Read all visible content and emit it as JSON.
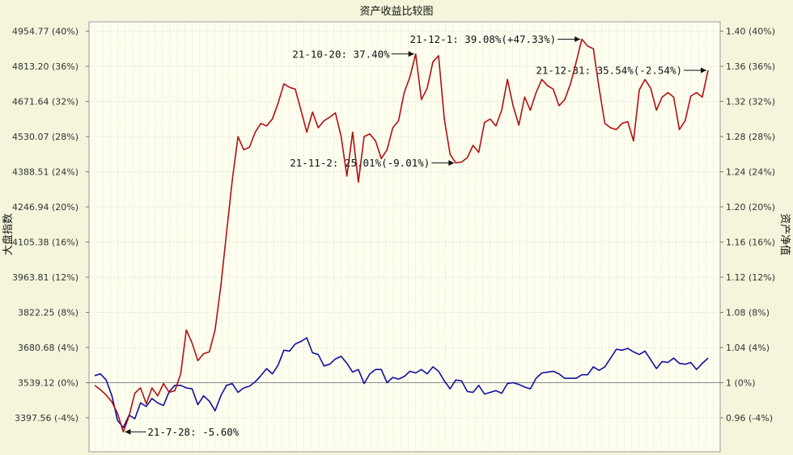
{
  "chart_data": {
    "type": "line",
    "title": "资产收益比较图",
    "ylabel_left": "大盘指数",
    "ylabel_right": "资产净值",
    "left_ticks": [
      "4954.77 (40%)",
      "4813.20 (36%)",
      "4671.64 (32%)",
      "4530.07 (28%)",
      "4388.51 (24%)",
      "4246.94 (20%)",
      "4105.38 (16%)",
      "3963.81 (12%)",
      "3822.25 (8%)",
      "3680.68 (4%)",
      "3539.12 (0%)",
      "3397.56 (-4%)"
    ],
    "right_ticks": [
      "1.40 (40%)",
      "1.36 (36%)",
      "1.32 (32%)",
      "1.28 (28%)",
      "1.24 (24%)",
      "1.20 (20%)",
      "1.16 (16%)",
      "1.12 (12%)",
      "1.08 (8%)",
      "1.04 (4%)",
      "1 (0%)",
      "0.96 (-4%)"
    ],
    "ylim_percent": [
      -4,
      40
    ],
    "grid": true,
    "colors": {
      "background": "#f5f5dc",
      "plot_background": "#fffff0",
      "fund": "#b01010",
      "index": "#1010a0",
      "grid": "#c8c8c8"
    },
    "series": [
      {
        "name": "资产净值",
        "color": "#b01010",
        "values": [
          -0.3,
          -0.8,
          -1.4,
          -2.2,
          -3.5,
          -5.6,
          -3.8,
          -1.2,
          -0.6,
          -2.4,
          -0.6,
          -1.5,
          -0.1,
          -1.1,
          -0.9,
          1.0,
          6.0,
          4.5,
          2.5,
          3.3,
          3.5,
          6.0,
          11.0,
          17.0,
          23.0,
          28.0,
          26.5,
          26.8,
          28.5,
          29.5,
          29.2,
          30.0,
          31.8,
          34.0,
          33.6,
          33.4,
          31.0,
          28.5,
          30.8,
          29.0,
          29.8,
          30.2,
          30.7,
          28.0,
          23.5,
          28.5,
          22.8,
          28.0,
          28.3,
          27.5,
          25.5,
          26.5,
          29.0,
          29.8,
          33.0,
          34.8,
          37.4,
          32.2,
          33.5,
          36.5,
          37.2,
          30.0,
          26.0,
          25.0,
          25.1,
          25.6,
          27.0,
          26.2,
          29.6,
          30.0,
          29.2,
          31.0,
          34.5,
          31.5,
          29.3,
          32.5,
          31.0,
          33.0,
          34.5,
          33.8,
          33.4,
          31.5,
          32.2,
          34.0,
          36.5,
          39.08,
          38.3,
          38.0,
          33.5,
          29.5,
          29.0,
          28.8,
          29.5,
          29.7,
          27.5,
          33.3,
          34.5,
          33.5,
          31.0,
          32.5,
          33.0,
          32.5,
          28.8,
          29.8,
          32.6,
          33.0,
          32.5,
          35.54
        ]
      },
      {
        "name": "大盘指数",
        "values": [
          0.8,
          1.0,
          0.3,
          -1.5,
          -4.3,
          -5.1,
          -3.7,
          -4.1,
          -2.3,
          -2.7,
          -1.8,
          -2.3,
          -2.6,
          -1.0,
          -0.3,
          -0.3,
          -0.6,
          -0.7,
          -2.5,
          -1.5,
          -2.1,
          -3.2,
          -1.5,
          -0.3,
          -0.1,
          -1.1,
          -0.6,
          -0.4,
          0.1,
          0.8,
          1.6,
          1.0,
          2.0,
          3.7,
          3.6,
          4.4,
          4.7,
          5.1,
          3.4,
          3.2,
          1.9,
          2.1,
          2.7,
          3.0,
          2.2,
          1.2,
          1.5,
          -0.1,
          1.0,
          1.5,
          1.5,
          0.0,
          0.6,
          0.4,
          0.7,
          1.3,
          1.1,
          1.5,
          1.0,
          1.8,
          1.3,
          0.2,
          -0.7,
          0.3,
          0.2,
          -1.0,
          -1.1,
          -0.3,
          -1.3,
          -1.1,
          -0.9,
          -1.2,
          -0.1,
          0.0,
          -0.2,
          -0.5,
          -0.7,
          0.5,
          1.1,
          1.2,
          1.3,
          1.0,
          0.5,
          0.5,
          0.5,
          0.9,
          0.9,
          1.8,
          1.4,
          1.8,
          2.8,
          3.8,
          3.7,
          3.9,
          3.5,
          3.2,
          3.6,
          2.6,
          1.6,
          2.4,
          2.3,
          2.8,
          2.2,
          2.1,
          2.3,
          1.5,
          2.2,
          2.8
        ]
      }
    ],
    "annotations": [
      {
        "text": "21-7-28: -5.60%",
        "series": 0,
        "index": 5,
        "text_side": "right"
      },
      {
        "text": "21-10-20: 37.40%",
        "series": 0,
        "index": 56,
        "text_side": "left"
      },
      {
        "text": "21-11-2: 25.01%(-9.01%)",
        "series": 0,
        "index": 63,
        "text_side": "left"
      },
      {
        "text": "21-12-1: 39.08%(+47.33%)",
        "series": 0,
        "index": 85,
        "text_side": "left"
      },
      {
        "text": "21-12-31: 35.54%(-2.54%)",
        "series": 0,
        "index": 107,
        "text_side": "left"
      }
    ]
  }
}
